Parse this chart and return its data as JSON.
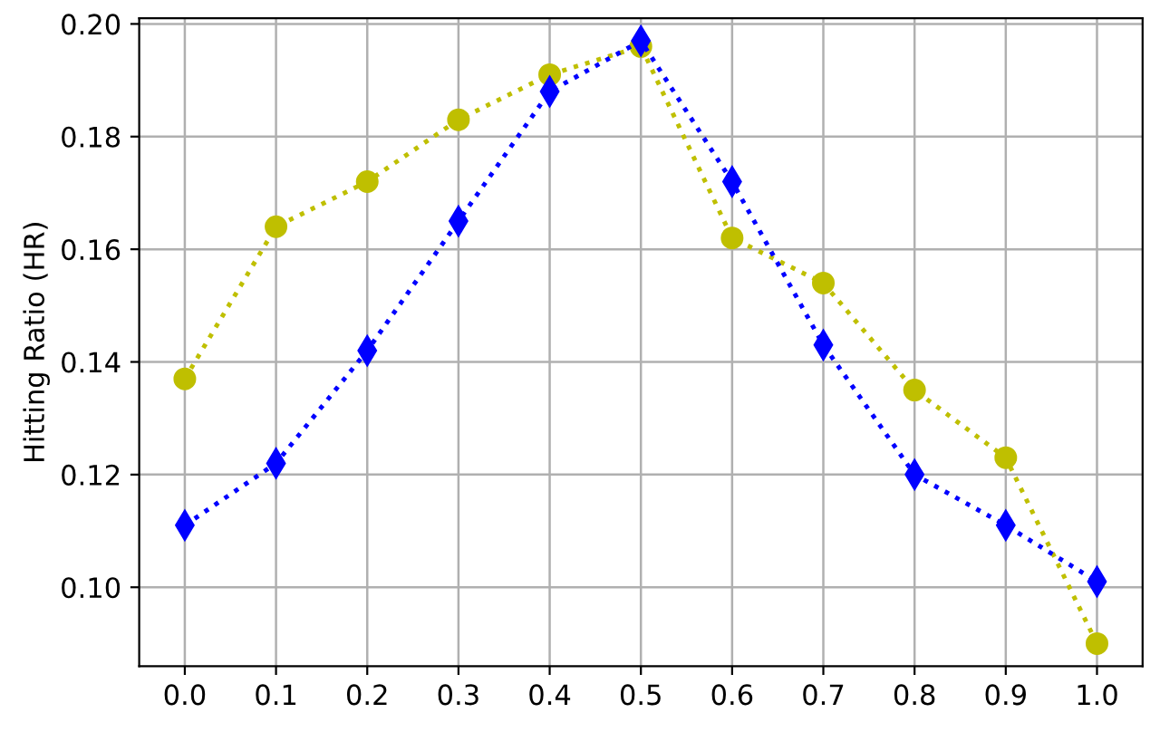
{
  "chart_data": {
    "type": "line",
    "ylabel": "Hitting Ratio (HR)",
    "x": [
      0.0,
      0.1,
      0.2,
      0.3,
      0.4,
      0.5,
      0.6,
      0.7,
      0.8,
      0.9,
      1.0
    ],
    "series": [
      {
        "color": "#0000ff",
        "marker": "diamond",
        "values": [
          0.111,
          0.122,
          0.142,
          0.165,
          0.188,
          0.197,
          0.172,
          0.143,
          0.12,
          0.111,
          0.101
        ]
      },
      {
        "color": "#bfbf00",
        "marker": "circle",
        "values": [
          0.137,
          0.164,
          0.172,
          0.183,
          0.191,
          0.196,
          0.162,
          0.154,
          0.135,
          0.123,
          0.09
        ]
      }
    ],
    "line_style": "dotted",
    "xlim": [
      -0.05,
      1.05
    ],
    "ylim": [
      0.086,
      0.201
    ],
    "xticks": [
      {
        "value": 0.0,
        "label": "0.0"
      },
      0.1,
      0.2,
      0.3,
      0.4,
      0.5,
      0.6,
      0.7,
      0.8,
      0.9,
      {
        "value": 1.0,
        "label": "1.0"
      }
    ],
    "yticks": [
      {
        "value": 0.1,
        "label": "0.10"
      },
      0.12,
      0.14,
      0.16,
      0.18,
      {
        "value": 0.2,
        "label": "0.20"
      }
    ],
    "grid": true
  }
}
